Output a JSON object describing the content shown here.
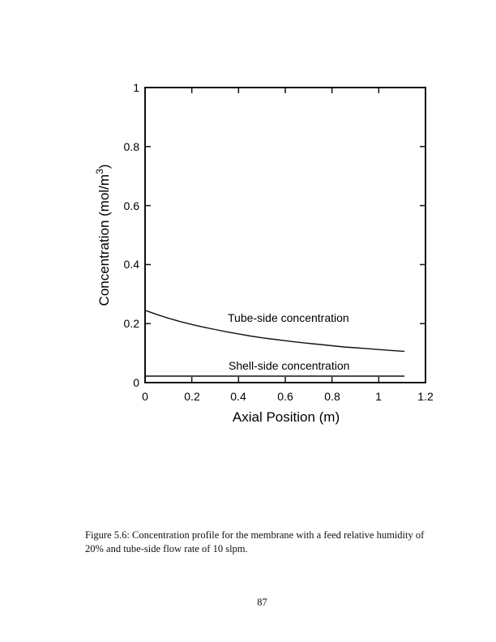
{
  "page": {
    "number": "87"
  },
  "figure": {
    "caption_lines": [
      "Figure 5.6: Concentration profile for the membrane with a feed relative humidity of",
      "20% and tube-side flow rate of 10 slpm."
    ]
  },
  "chart_data": {
    "type": "line",
    "title": "",
    "xlabel": "Axial Position (m)",
    "ylabel": "Concentration (mol/m3)",
    "ylabel_parts": {
      "main": "Concentration (mol/m",
      "sup": "3",
      "close": ")"
    },
    "xlim": [
      0,
      1.2
    ],
    "ylim": [
      0,
      1
    ],
    "grid": false,
    "legend_position": "in-plot text annotations",
    "x_tick_labels": [
      "0",
      "0.2",
      "0.4",
      "0.6",
      "0.8",
      "1",
      "1.2"
    ],
    "x_tick_values": [
      0,
      0.2,
      0.4,
      0.6,
      0.8,
      1,
      1.2
    ],
    "y_tick_labels": [
      "0",
      "0.2",
      "0.4",
      "0.6",
      "0.8",
      "1"
    ],
    "y_tick_values": [
      0,
      0.2,
      0.4,
      0.6,
      0.8,
      1
    ],
    "line_color": "#111111",
    "annotations": [
      {
        "label": "Tube-side concentration"
      },
      {
        "label": "Shell-side concentration"
      }
    ],
    "series": [
      {
        "name": "Tube-side concentration",
        "x": [
          0,
          0.05,
          0.1,
          0.15,
          0.2,
          0.25,
          0.3,
          0.35,
          0.4,
          0.45,
          0.5,
          0.55,
          0.6,
          0.65,
          0.7,
          0.75,
          0.8,
          0.85,
          0.9,
          0.95,
          1.0,
          1.05,
          1.11
        ],
        "y": [
          0.245,
          0.231,
          0.218,
          0.207,
          0.197,
          0.188,
          0.18,
          0.172,
          0.165,
          0.158,
          0.152,
          0.147,
          0.142,
          0.137,
          0.133,
          0.129,
          0.125,
          0.121,
          0.118,
          0.115,
          0.112,
          0.109,
          0.106
        ]
      },
      {
        "name": "Shell-side concentration",
        "x": [
          0,
          1.11
        ],
        "y": [
          0.022,
          0.022
        ]
      }
    ]
  }
}
